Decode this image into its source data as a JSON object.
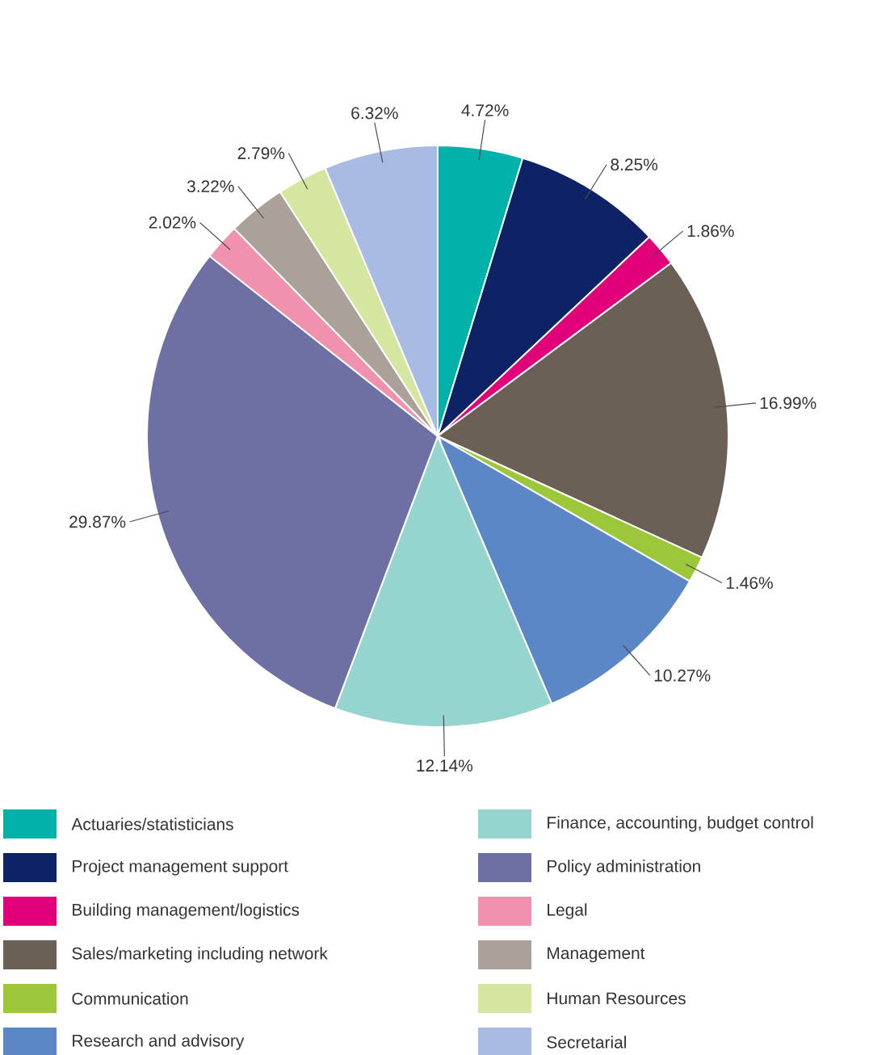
{
  "chart_data": {
    "type": "pie",
    "legend": "bottom",
    "categories": [
      "Actuaries/statisticians",
      "Project management support",
      "Building management/logistics",
      "Sales/marketing including network",
      "Communication",
      "Research and advisory",
      "Finance, accounting, budget control",
      "Policy administration",
      "Legal",
      "Management",
      "Human Resources",
      "Secretarial"
    ],
    "values": [
      4.72,
      8.25,
      1.86,
      16.99,
      1.46,
      10.27,
      12.14,
      29.87,
      2.02,
      3.22,
      2.79,
      6.32
    ],
    "value_labels": [
      "4.72%",
      "8.25%",
      "1.86%",
      "16.99%",
      "1.46%",
      "10.27%",
      "12.14%",
      "29.87%",
      "2.02%",
      "3.22%",
      "2.79%",
      "6.32%"
    ],
    "colors": [
      "#00b2a9",
      "#0d2366",
      "#e2007a",
      "#6b6056",
      "#9dc73a",
      "#5b87c7",
      "#96d4d0",
      "#6e6fa3",
      "#f092ad",
      "#aaa198",
      "#d5e6a1",
      "#a8bbe3"
    ]
  }
}
